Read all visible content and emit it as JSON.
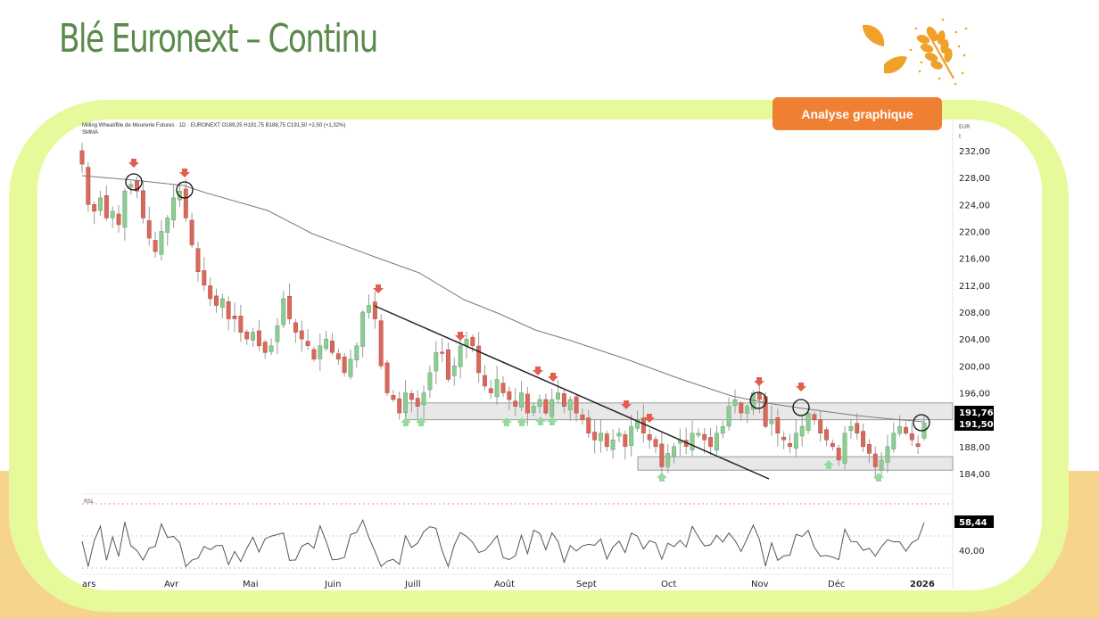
{
  "page": {
    "title": "Blé Euronext – Continu",
    "badge_label": "Analyse graphique",
    "logo_icon": "wheat-leaves-icon"
  },
  "colors": {
    "title_green": "#5a8a4c",
    "frame_lime": "#e6fa9c",
    "sand": "#f7d48b",
    "badge_orange": "#ee7f33",
    "logo_orange": "#f0a12a",
    "candle_up": "#8fcb95",
    "candle_down": "#d9695c",
    "arrow_down": "#e35d4f",
    "arrow_up": "#95dba0",
    "sma": "#7a7a7a",
    "rsi_upper": "#f08a8a",
    "rsi_mid": "#cccccc",
    "rsi_lower": "#8be08b"
  },
  "chart_header": {
    "line1": "Milling Wheat/Ble de Meunerie Futures · 1D · EURONEXT  O189,25  H191,75  B188,75  C191,50  +2,50 (+1,32%)",
    "line2": "SMMA"
  },
  "chart_data": {
    "type": "candlestick",
    "title": "Milling Wheat/Ble de Meunerie Futures · 1D · EURONEXT",
    "ohlc_last": {
      "open": 189.25,
      "high": 191.75,
      "low": 188.75,
      "close": 191.5,
      "change": "+2,50",
      "change_pct": "+1,32%"
    },
    "currency_label": [
      "EUR",
      "t"
    ],
    "y_ticks": [
      "232,00",
      "228,00",
      "224,00",
      "220,00",
      "216,00",
      "212,00",
      "208,00",
      "204,00",
      "200,00",
      "196,00",
      "188,00",
      "184,00"
    ],
    "ylim": [
      182,
      234
    ],
    "x_labels": [
      "ars",
      "Avr",
      "Mai",
      "Juin",
      "Juill",
      "Août",
      "Sept",
      "Oct",
      "Nov",
      "Déc",
      "2026"
    ],
    "price_labels": [
      {
        "value": "191,76",
        "note": "SMMA"
      },
      {
        "value": "191,50",
        "note": "last close"
      }
    ],
    "sma_path_points": [
      [
        230,
        227
      ],
      [
        240,
        226.5
      ],
      [
        250,
        225.5
      ],
      [
        260,
        223.5
      ],
      [
        270,
        221
      ],
      [
        280,
        218
      ],
      [
        290,
        215.5
      ],
      [
        300,
        213.5
      ],
      [
        310,
        212
      ],
      [
        320,
        210
      ],
      [
        330,
        208.8
      ],
      [
        340,
        207.6
      ],
      [
        350,
        206.3
      ],
      [
        360,
        205
      ],
      [
        370,
        203.6
      ],
      [
        380,
        202.1
      ],
      [
        390,
        200.6
      ],
      [
        400,
        199.2
      ],
      [
        410,
        197.8
      ],
      [
        420,
        196.6
      ],
      [
        430,
        195.3
      ],
      [
        440,
        194.5
      ],
      [
        450,
        193.6
      ],
      [
        460,
        192.7
      ],
      [
        468,
        192
      ]
    ],
    "close_series": [
      230,
      224,
      223,
      225,
      222,
      223,
      221,
      226,
      227,
      226,
      222,
      219,
      217,
      220,
      222,
      225,
      226,
      222,
      218,
      214,
      212,
      210,
      209,
      210,
      207,
      207,
      205,
      204,
      205,
      203,
      202,
      203,
      206,
      210,
      207,
      205,
      204,
      203,
      201,
      203,
      204,
      202,
      201,
      199,
      201,
      203,
      208,
      209,
      207,
      200,
      196,
      195,
      193,
      196,
      195,
      194,
      196,
      199,
      202,
      202,
      198,
      200,
      203,
      204,
      203,
      199,
      197,
      196,
      198,
      196,
      195,
      194,
      196,
      193,
      194,
      195,
      193,
      195,
      196,
      194,
      195,
      193,
      192,
      190,
      189,
      190,
      188,
      189,
      190,
      188,
      191,
      192,
      190,
      189,
      188,
      185,
      187,
      188,
      189,
      188,
      190,
      190,
      189,
      188,
      190,
      191,
      194,
      195,
      193,
      194,
      196,
      195,
      191,
      192,
      190,
      189,
      188,
      190,
      191,
      193,
      192,
      190,
      189,
      188,
      186,
      190,
      191,
      190,
      188,
      187,
      185,
      186,
      188,
      190,
      191,
      190,
      189,
      188,
      191.5
    ],
    "annotations": {
      "resistance_zone": [
        192,
        194.5
      ],
      "support_zone": [
        184.5,
        186.5
      ],
      "downtrend_line": {
        "from": [
          420,
          208.9
        ],
        "to": [
          862,
          183.2
        ]
      },
      "down_arrows": 13,
      "up_arrows": 11,
      "circles": 6
    },
    "rsi": {
      "label": "RSL",
      "value": "58,44",
      "y_tick": "40,00",
      "levels": {
        "upper": 70,
        "mid": 50,
        "lower": 30
      }
    }
  }
}
